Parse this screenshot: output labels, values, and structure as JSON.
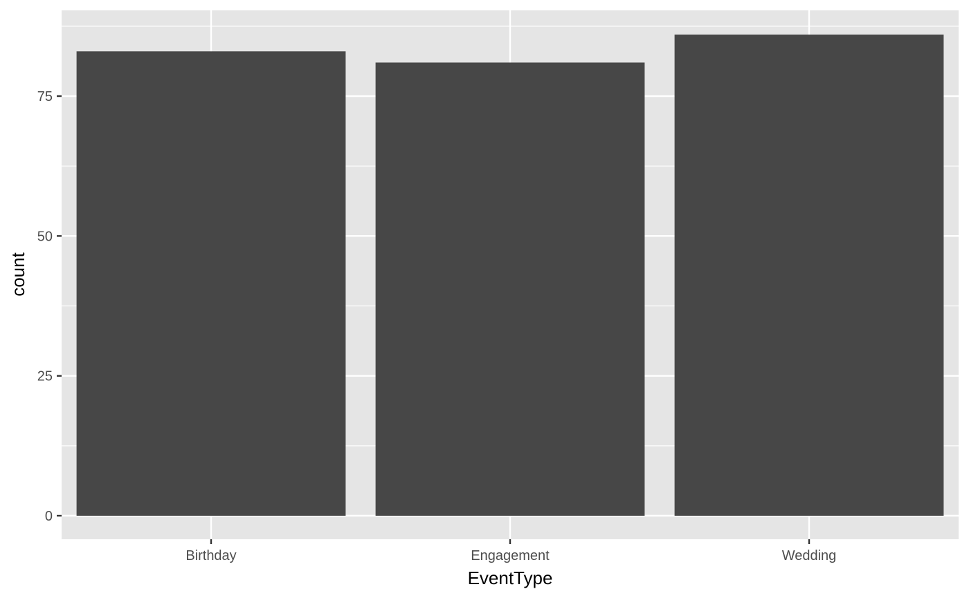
{
  "chart_data": {
    "type": "bar",
    "categories": [
      "Birthday",
      "Engagement",
      "Wedding"
    ],
    "values": [
      83,
      81,
      86
    ],
    "xlabel": "EventType",
    "ylabel": "count",
    "ylim": [
      0,
      88.6
    ],
    "yticks": [
      0,
      25,
      50,
      75
    ],
    "grid": true,
    "colors": {
      "panel": "#e5e5e5",
      "bar": "#474747",
      "grid": "#ffffff",
      "ticks": "#333333"
    }
  }
}
